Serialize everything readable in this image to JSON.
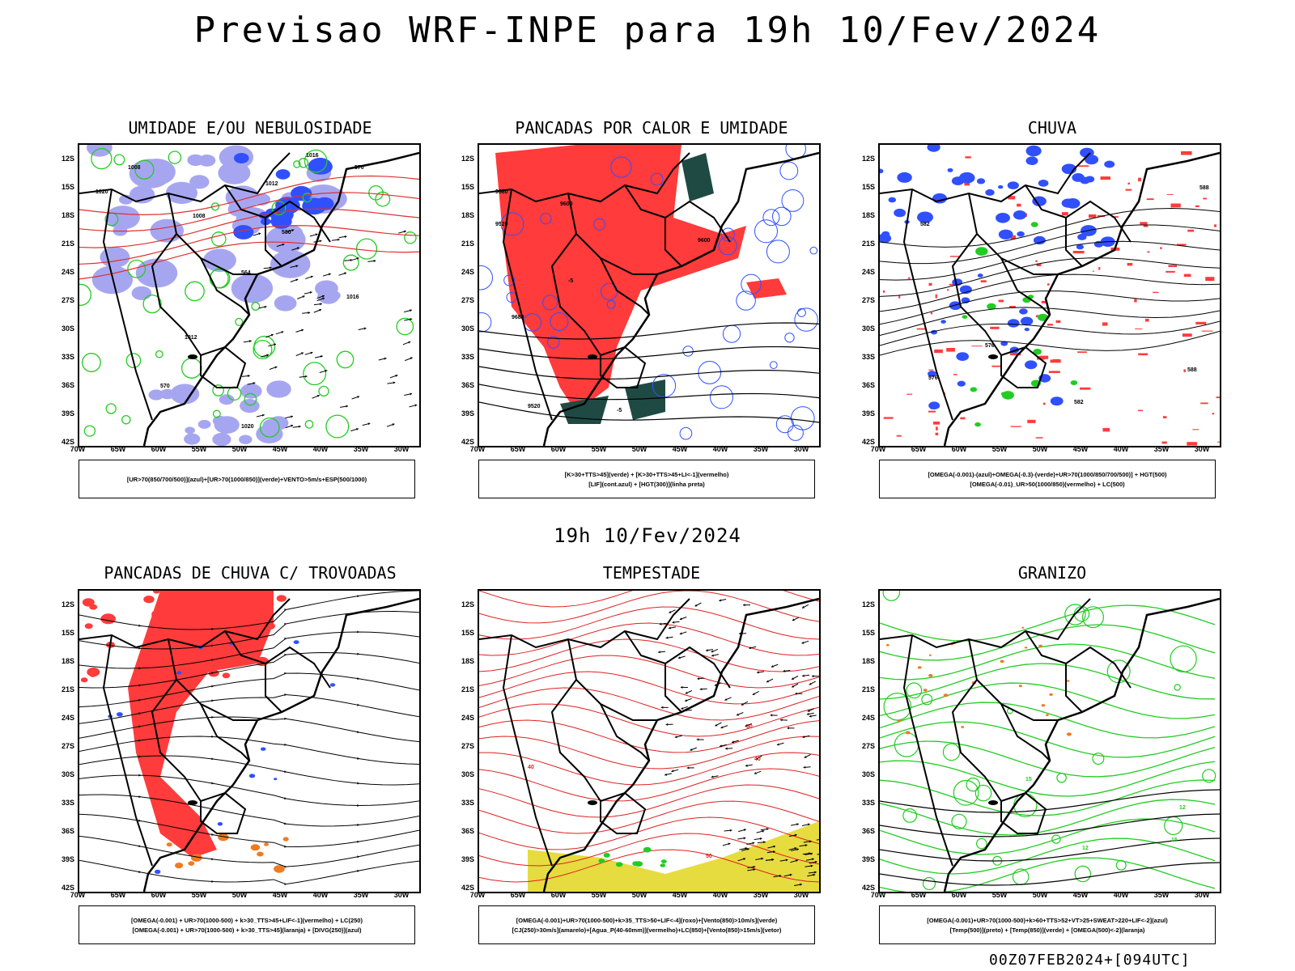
{
  "header": {
    "title": "Previsao WRF-INPE  para 19h 10/Fev/2024",
    "subtitle": "19h 10/Fev/2024",
    "footer": "00Z07FEB2024+[094UTC]"
  },
  "axes": {
    "lat_labels": [
      "12S",
      "15S",
      "18S",
      "21S",
      "24S",
      "27S",
      "30S",
      "33S",
      "36S",
      "39S",
      "42S"
    ],
    "lon_labels": [
      "70W",
      "65W",
      "60W",
      "55W",
      "50W",
      "45W",
      "40W",
      "35W",
      "30W"
    ]
  },
  "panels": [
    {
      "title": "UMIDADE E/OU NEBULOSIDADE",
      "legend_lines": [
        "[UR>70(850/700/500)](azul)+[UR>70(1000/850)](verde)+VENTO>5m/s+ESP(500/1000)"
      ],
      "contour_labels": [
        "1008",
        "1016",
        "1012",
        "1020",
        "570",
        "580",
        "564"
      ]
    },
    {
      "title": "PANCADAS POR CALOR E UMIDADE",
      "legend_lines": [
        "[K>30+TTS>45](verde) + [K>30+TTS>45+LI<-1](vermelho)",
        "[LIF](cont.azul) + [HGT(300)](linha preta)"
      ],
      "contour_labels": [
        "9680",
        "9600",
        "9520",
        "-5"
      ]
    },
    {
      "title": "CHUVA",
      "legend_lines": [
        "[OMEGA(-0.001)-(azul)+OMEGA(-0.3)-(verde)+UR>70(1000/850/700/500)] + HGT(500)",
        "[OMEGA(-0.01)_UR>50(1000/850)(vermelho) + LC(500)"
      ],
      "contour_labels": [
        "588",
        "582",
        "576"
      ]
    },
    {
      "title": "PANCADAS DE CHUVA C/ TROVOADAS",
      "legend_lines": [
        "[OMEGA(-0.001) + UR>70(1000-500) + k>30_TTS>45+LIF<-1](vermelho) + LC(250)",
        "[OMEGA(-0.001) + UR>70(1000-500) + k>30_TTS>45](laranja) + [DIVG(250)](azul)"
      ],
      "contour_labels": []
    },
    {
      "title": "TEMPESTADE",
      "legend_lines": [
        "[OMEGA(-0.001)+UR>70(1000-500)+k>35_TTS>50+LIF<-4](roxo)+[Vento(850)>10m/s](verde)",
        "[CJ(250)>30m/s](amarelo)+[Agua_P(40-60mm)](vermelho)+LC(850)+[Vento(850)>15m/s](vetor)"
      ],
      "contour_labels": [
        "40",
        "50"
      ]
    },
    {
      "title": "GRANIZO",
      "legend_lines": [
        "[OMEGA(-0.001)+UR>70(1000-500)+k>60+TTS>52+VT>25+SWEAT>220+LIF<-2](azul)",
        "[Temp(500)](preto) + [Temp(850)](verde) + [OMEGA(500)<-2](laranja)"
      ],
      "contour_labels": [
        "15",
        "12"
      ]
    }
  ],
  "colors": {
    "blue": "#3050ff",
    "lavender": "#a6a6f0",
    "green": "#22cc22",
    "red": "#ff3b3b",
    "darkred": "#e02020",
    "dark_teal": "#1f4a44",
    "orange": "#f07a20",
    "yellow": "#e6dc40"
  }
}
